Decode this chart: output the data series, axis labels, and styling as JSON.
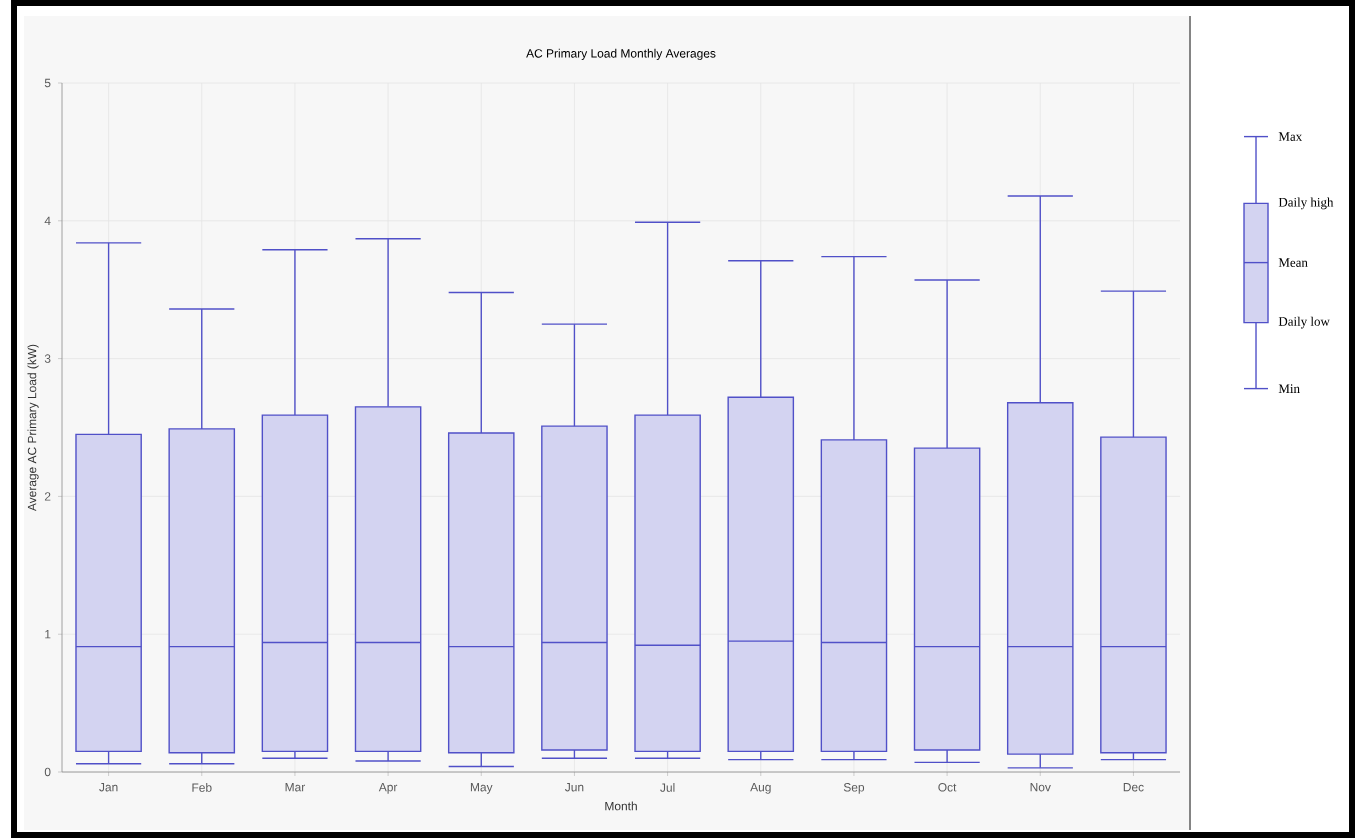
{
  "chart_data": {
    "type": "box",
    "title": "AC Primary Load Monthly Averages",
    "xlabel": "Month",
    "ylabel": "Average AC Primary Load (kW)",
    "categories": [
      "Jan",
      "Feb",
      "Mar",
      "Apr",
      "May",
      "Jun",
      "Jul",
      "Aug",
      "Sep",
      "Oct",
      "Nov",
      "Dec"
    ],
    "series": [
      {
        "color": "#5050c8",
        "boxes": [
          {
            "low": 0.06,
            "q1": 0.15,
            "median": 0.91,
            "q3": 2.45,
            "high": 3.84
          },
          {
            "low": 0.06,
            "q1": 0.14,
            "median": 0.91,
            "q3": 2.49,
            "high": 3.36
          },
          {
            "low": 0.1,
            "q1": 0.15,
            "median": 0.94,
            "q3": 2.59,
            "high": 3.79
          },
          {
            "low": 0.08,
            "q1": 0.15,
            "median": 0.94,
            "q3": 2.65,
            "high": 3.87
          },
          {
            "low": 0.04,
            "q1": 0.14,
            "median": 0.91,
            "q3": 2.46,
            "high": 3.48
          },
          {
            "low": 0.1,
            "q1": 0.16,
            "median": 0.94,
            "q3": 2.51,
            "high": 3.25
          },
          {
            "low": 0.1,
            "q1": 0.15,
            "median": 0.92,
            "q3": 2.59,
            "high": 3.99
          },
          {
            "low": 0.09,
            "q1": 0.15,
            "median": 0.95,
            "q3": 2.72,
            "high": 3.71
          },
          {
            "low": 0.09,
            "q1": 0.15,
            "median": 0.94,
            "q3": 2.41,
            "high": 3.74
          },
          {
            "low": 0.07,
            "q1": 0.16,
            "median": 0.91,
            "q3": 2.35,
            "high": 3.57
          },
          {
            "low": 0.03,
            "q1": 0.13,
            "median": 0.91,
            "q3": 2.68,
            "high": 4.18
          },
          {
            "low": 0.09,
            "q1": 0.14,
            "median": 0.91,
            "q3": 2.43,
            "high": 3.49
          }
        ]
      }
    ],
    "ylim": [
      0,
      5
    ],
    "yticks": [
      0,
      1,
      2,
      3,
      4,
      5
    ],
    "grid": true,
    "annotations": [
      "Max",
      "Daily high",
      "Mean",
      "Daily low",
      "Min"
    ]
  }
}
